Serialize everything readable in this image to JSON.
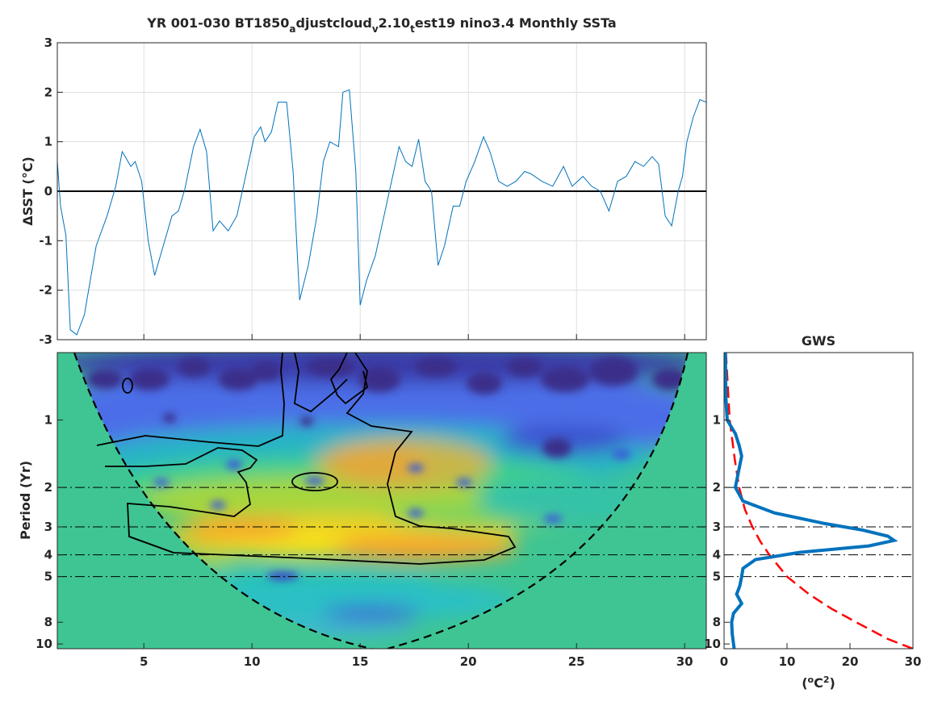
{
  "title_parts": [
    "YR 001-030 BT1850",
    "a",
    "djustcloud",
    "v",
    "2.10",
    "t",
    "est19 nino3.4 Monthly SSTa"
  ],
  "ts": {
    "ylabel": "ΔSST (°C)",
    "ylim": [
      -3,
      3
    ],
    "yticks": [
      "-3",
      "-2",
      "-1",
      "0",
      "1",
      "2",
      "3"
    ],
    "xlim": [
      1,
      31
    ],
    "zero_line": 0,
    "line_color": "#0072bd"
  },
  "wavelet": {
    "ylabel": "Period (Yr)",
    "yticks": [
      "1",
      "2",
      "3",
      "4",
      "5",
      "8",
      "10"
    ],
    "xticks": [
      "5",
      "10",
      "15",
      "20",
      "25",
      "30"
    ],
    "reference_periods": [
      2,
      3,
      4,
      5
    ]
  },
  "gws": {
    "title": "GWS",
    "xlabel_base": "(",
    "xlabel_unit": "o",
    "xlabel_c": "C",
    "xlabel_exp": "2",
    "xlabel_close": ")",
    "xticks": [
      "0",
      "10",
      "20",
      "30"
    ],
    "yticks": [
      "1",
      "2",
      "3",
      "4",
      "5",
      "8",
      "10"
    ],
    "line_color": "#0072bd",
    "sig_color": "#ff0000"
  },
  "chart_data": [
    {
      "type": "line",
      "title": "YR 001-030 BT1850_adjustcloud_v2.10_test19 nino3.4 Monthly SSTa",
      "xlabel": "",
      "ylabel": "ΔSST (°C)",
      "xlim": [
        1,
        31
      ],
      "ylim": [
        -3,
        3
      ],
      "grid": true,
      "x": [
        1.0,
        1.15,
        1.4,
        1.6,
        1.9,
        2.25,
        2.8,
        3.3,
        3.7,
        4.0,
        4.4,
        4.6,
        4.9,
        5.2,
        5.5,
        5.9,
        6.3,
        6.6,
        6.9,
        7.3,
        7.6,
        7.9,
        8.2,
        8.5,
        8.9,
        9.3,
        9.7,
        10.1,
        10.4,
        10.6,
        10.9,
        11.2,
        11.6,
        11.9,
        12.2,
        12.6,
        13.0,
        13.3,
        13.6,
        14.0,
        14.2,
        14.5,
        14.8,
        15.0,
        15.3,
        15.7,
        16.1,
        16.5,
        16.8,
        17.1,
        17.4,
        17.7,
        18.0,
        18.3,
        18.6,
        18.9,
        19.3,
        19.6,
        19.9,
        20.3,
        20.7,
        21.0,
        21.4,
        21.8,
        22.2,
        22.6,
        22.9,
        23.4,
        23.9,
        24.4,
        24.8,
        25.3,
        25.7,
        26.1,
        26.5,
        26.9,
        27.3,
        27.7,
        28.1,
        28.5,
        28.8,
        29.1,
        29.4,
        29.7,
        29.9,
        30.1,
        30.4,
        30.7,
        31.0
      ],
      "y": [
        0.6,
        -0.3,
        -0.9,
        -2.8,
        -2.9,
        -2.5,
        -1.1,
        -0.5,
        0.1,
        0.8,
        0.5,
        0.6,
        0.2,
        -1.0,
        -1.7,
        -1.1,
        -0.5,
        -0.4,
        0.05,
        0.9,
        1.25,
        0.8,
        -0.8,
        -0.6,
        -0.8,
        -0.5,
        0.3,
        1.1,
        1.3,
        1.0,
        1.2,
        1.8,
        1.8,
        0.4,
        -2.2,
        -1.5,
        -0.5,
        0.6,
        1.0,
        0.9,
        2.0,
        2.05,
        0.4,
        -2.3,
        -1.8,
        -1.3,
        -0.5,
        0.3,
        0.9,
        0.6,
        0.5,
        1.05,
        0.2,
        0.0,
        -1.5,
        -1.1,
        -0.3,
        -0.3,
        0.2,
        0.6,
        1.1,
        0.8,
        0.2,
        0.1,
        0.2,
        0.4,
        0.35,
        0.2,
        0.1,
        0.5,
        0.1,
        0.3,
        0.1,
        0.0,
        -0.4,
        0.2,
        0.3,
        0.6,
        0.5,
        0.7,
        0.55,
        -0.5,
        -0.7,
        0.0,
        0.3,
        1.0,
        1.5,
        1.85,
        1.8
      ]
    },
    {
      "type": "heatmap",
      "title": "",
      "xlabel": "",
      "ylabel": "Period (Yr)",
      "xlim": [
        1,
        31
      ],
      "yscale": "log",
      "ylim": [
        0.5,
        10.5
      ],
      "max_power_at": {
        "period": 3.5,
        "x": 13
      },
      "significance_contour": true,
      "cone_of_influence": true
    },
    {
      "type": "line",
      "title": "GWS",
      "xlabel": "(°C²)",
      "ylabel": "",
      "xlim": [
        0,
        30
      ],
      "yscale": "log",
      "ylim": [
        0.5,
        10.5
      ],
      "series": [
        {
          "values_period": [
            0.5,
            0.8,
            1.0,
            1.15,
            1.3,
            1.45,
            1.7,
            2.0,
            2.3,
            2.6,
            2.9,
            3.1,
            3.3,
            3.45,
            3.65,
            3.9,
            4.2,
            4.6,
            5.0,
            5.5,
            6.0,
            6.6,
            7.3,
            8.0,
            9.0,
            10.5
          ],
          "values_power": [
            0.2,
            0.3,
            0.5,
            1.8,
            2.4,
            2.8,
            2.3,
            1.8,
            3.0,
            8.0,
            16.0,
            22.0,
            26.0,
            27.0,
            23.0,
            12.0,
            5.0,
            3.0,
            2.8,
            2.5,
            2.0,
            2.8,
            1.5,
            1.2,
            1.3,
            1.6
          ]
        },
        {
          "values_period": [
            0.5,
            1.0,
            1.5,
            2.0,
            2.5,
            3.0,
            3.5,
            4.0,
            5.0,
            6.0,
            7.0,
            8.0,
            9.5,
            10.5
          ],
          "values_power": [
            0.3,
            0.9,
            1.7,
            2.4,
            3.3,
            4.5,
            5.8,
            7.2,
            10.0,
            13.5,
            17.2,
            21.0,
            26.0,
            30.0
          ]
        }
      ]
    }
  ]
}
